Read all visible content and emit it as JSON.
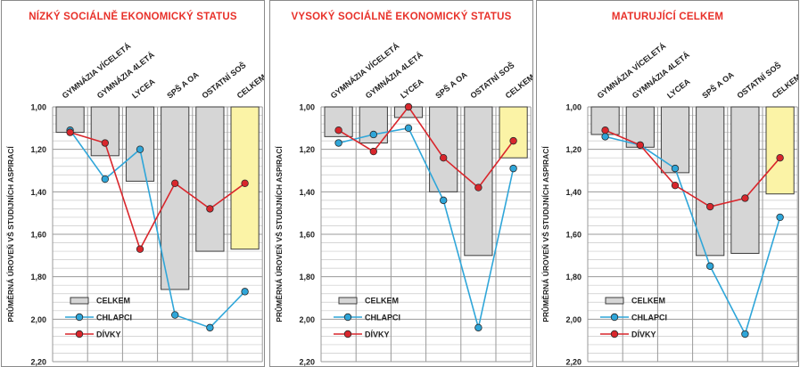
{
  "chart_data": [
    {
      "type": "bar",
      "title": "NÍZKÝ SOCIÁLNĚ EKONOMICKÝ STATUS",
      "ylabel": "PRŮMĚRNÁ ÚROVEŇ VŠ STUDIJNÍCH ASPIRACÍ",
      "categories": [
        "GYMNÁZIA VÍCELETÁ",
        "GYMNÁZIA 4LETÁ",
        "LYCEA",
        "SPŠ A OA",
        "OSTATNÍ SOŠ",
        "CELKEM"
      ],
      "ylim": [
        1.0,
        2.2
      ],
      "y_inverted": true,
      "yticks": [
        "1,00",
        "1,20",
        "1,40",
        "1,60",
        "1,80",
        "2,00",
        "2,20"
      ],
      "grid": true,
      "legend_position": "bottom-left",
      "series": [
        {
          "name": "CELKEM",
          "kind": "bar",
          "values": [
            1.12,
            1.23,
            1.35,
            1.86,
            1.68,
            1.67
          ]
        },
        {
          "name": "CHLAPCI",
          "kind": "line",
          "color": "#2fa6d9",
          "values": [
            1.11,
            1.34,
            1.2,
            1.98,
            2.04,
            1.87
          ]
        },
        {
          "name": "DÍVKY",
          "kind": "line",
          "color": "#d9262c",
          "values": [
            1.12,
            1.17,
            1.67,
            1.36,
            1.48,
            1.36
          ]
        }
      ]
    },
    {
      "type": "bar",
      "title": "VYSOKÝ SOCIÁLNĚ EKONOMICKÝ STATUS",
      "ylabel": "PRŮMĚRNÁ ÚROVEŇ VŠ STUDIJNÍCH ASPIRACÍ",
      "categories": [
        "GYMNÁZIA VÍCELETÁ",
        "GYMNÁZIA 4LETÁ",
        "LYCEA",
        "SPŠ A OA",
        "OSTATNÍ SOŠ",
        "CELKEM"
      ],
      "ylim": [
        1.0,
        2.2
      ],
      "y_inverted": true,
      "yticks": [
        "1,00",
        "1,20",
        "1,40",
        "1,60",
        "1,80",
        "2,00",
        "2,20"
      ],
      "grid": true,
      "legend_position": "bottom-left",
      "series": [
        {
          "name": "CELKEM",
          "kind": "bar",
          "values": [
            1.14,
            1.17,
            1.05,
            1.4,
            1.7,
            1.24
          ]
        },
        {
          "name": "CHLAPCI",
          "kind": "line",
          "color": "#2fa6d9",
          "values": [
            1.17,
            1.13,
            1.1,
            1.44,
            2.04,
            1.29
          ]
        },
        {
          "name": "DÍVKY",
          "kind": "line",
          "color": "#d9262c",
          "values": [
            1.11,
            1.21,
            1.0,
            1.24,
            1.38,
            1.16
          ]
        }
      ]
    },
    {
      "type": "bar",
      "title": "MATURUJÍCÍ CELKEM",
      "ylabel": "PRŮMĚRNÁ ÚROVEŇ VŠ STUDIJNÍCH ASPIRACÍ",
      "categories": [
        "GYMNÁZIA VÍCELETÁ",
        "GYMNÁZIA 4LETÁ",
        "LYCEA",
        "SPŠ A OA",
        "OSTATNÍ SOŠ",
        "CELKEM"
      ],
      "ylim": [
        1.0,
        2.2
      ],
      "y_inverted": true,
      "yticks": [
        "1,00",
        "1,20",
        "1,40",
        "1,60",
        "1,80",
        "2,00",
        "2,20"
      ],
      "grid": true,
      "legend_position": "bottom-left",
      "series": [
        {
          "name": "CELKEM",
          "kind": "bar",
          "values": [
            1.13,
            1.19,
            1.31,
            1.7,
            1.69,
            1.41
          ]
        },
        {
          "name": "CHLAPCI",
          "kind": "line",
          "color": "#2fa6d9",
          "values": [
            1.14,
            1.18,
            1.29,
            1.75,
            2.07,
            1.52
          ]
        },
        {
          "name": "DÍVKY",
          "kind": "line",
          "color": "#d9262c",
          "values": [
            1.11,
            1.18,
            1.37,
            1.47,
            1.43,
            1.24
          ]
        }
      ]
    }
  ]
}
